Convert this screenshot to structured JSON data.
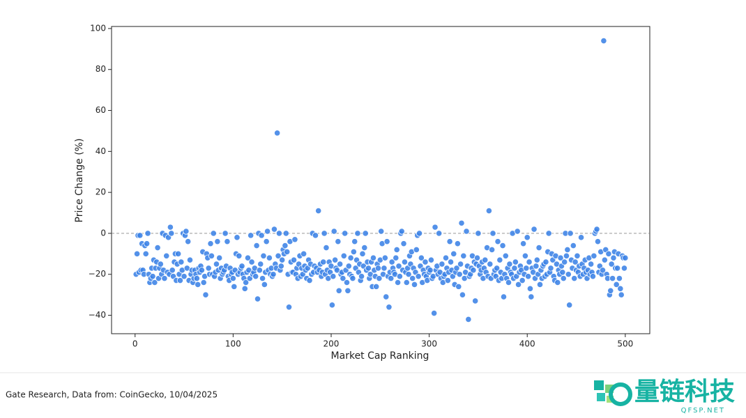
{
  "chart_data": {
    "type": "scatter",
    "x_label": "Market Cap Ranking",
    "y_label": "Price Change (%)",
    "color": "#3b82e6",
    "edge_color": "#ffffff",
    "grid": false,
    "reference_line": 0,
    "xlim": [
      -24,
      525
    ],
    "ylim": [
      -49,
      101
    ],
    "xticks": [
      0,
      100,
      200,
      300,
      400,
      500
    ],
    "yticks": [
      {
        "value": -40,
        "label": "−40"
      },
      {
        "value": -20,
        "label": "−20"
      },
      0,
      20,
      40,
      60,
      80,
      100
    ],
    "x": [
      1,
      2,
      3,
      4,
      5,
      6,
      7,
      8,
      9,
      10,
      11,
      12,
      13,
      14,
      15,
      16,
      17,
      18,
      19,
      20,
      21,
      22,
      23,
      24,
      25,
      26,
      27,
      28,
      29,
      30,
      31,
      32,
      33,
      34,
      35,
      36,
      37,
      38,
      39,
      40,
      41,
      42,
      43,
      44,
      45,
      46,
      47,
      48,
      49,
      50,
      51,
      52,
      53,
      54,
      55,
      56,
      57,
      58,
      59,
      60,
      61,
      62,
      63,
      64,
      65,
      66,
      67,
      68,
      69,
      70,
      71,
      72,
      73,
      74,
      75,
      76,
      77,
      78,
      79,
      80,
      81,
      82,
      83,
      84,
      85,
      86,
      87,
      88,
      89,
      90,
      91,
      92,
      93,
      94,
      95,
      96,
      97,
      98,
      99,
      100,
      101,
      102,
      103,
      104,
      105,
      106,
      107,
      108,
      109,
      110,
      111,
      112,
      113,
      114,
      115,
      116,
      117,
      118,
      119,
      120,
      121,
      122,
      123,
      124,
      125,
      126,
      127,
      128,
      129,
      130,
      131,
      132,
      133,
      134,
      135,
      136,
      137,
      138,
      139,
      140,
      141,
      142,
      143,
      144,
      145,
      146,
      147,
      148,
      149,
      150,
      151,
      152,
      153,
      154,
      155,
      156,
      157,
      158,
      159,
      160,
      161,
      162,
      163,
      164,
      165,
      166,
      167,
      168,
      169,
      170,
      171,
      172,
      173,
      174,
      175,
      176,
      177,
      178,
      179,
      180,
      181,
      182,
      183,
      184,
      185,
      186,
      187,
      188,
      189,
      190,
      191,
      192,
      193,
      194,
      195,
      196,
      197,
      198,
      199,
      200,
      201,
      202,
      203,
      204,
      205,
      206,
      207,
      208,
      209,
      210,
      211,
      212,
      213,
      214,
      215,
      216,
      217,
      218,
      219,
      220,
      221,
      222,
      223,
      224,
      225,
      226,
      227,
      228,
      229,
      230,
      231,
      232,
      233,
      234,
      235,
      236,
      237,
      238,
      239,
      240,
      241,
      242,
      243,
      244,
      245,
      246,
      247,
      248,
      249,
      250,
      251,
      252,
      253,
      254,
      255,
      256,
      257,
      258,
      259,
      260,
      261,
      262,
      263,
      264,
      265,
      266,
      267,
      268,
      269,
      270,
      271,
      272,
      273,
      274,
      275,
      276,
      277,
      278,
      279,
      280,
      281,
      282,
      283,
      284,
      285,
      286,
      287,
      288,
      289,
      290,
      291,
      292,
      293,
      294,
      295,
      296,
      297,
      298,
      299,
      300,
      301,
      302,
      303,
      304,
      305,
      306,
      307,
      308,
      309,
      310,
      311,
      312,
      313,
      314,
      315,
      316,
      317,
      318,
      319,
      320,
      321,
      322,
      323,
      324,
      325,
      326,
      327,
      328,
      329,
      330,
      331,
      332,
      333,
      334,
      335,
      336,
      337,
      338,
      339,
      340,
      341,
      342,
      343,
      344,
      345,
      346,
      347,
      348,
      349,
      350,
      351,
      352,
      353,
      354,
      355,
      356,
      357,
      358,
      359,
      360,
      361,
      362,
      363,
      364,
      365,
      366,
      367,
      368,
      369,
      370,
      371,
      372,
      373,
      374,
      375,
      376,
      377,
      378,
      379,
      380,
      381,
      382,
      383,
      384,
      385,
      386,
      387,
      388,
      389,
      390,
      391,
      392,
      393,
      394,
      395,
      396,
      397,
      398,
      399,
      400,
      401,
      402,
      403,
      404,
      405,
      406,
      407,
      408,
      409,
      410,
      411,
      412,
      413,
      414,
      415,
      416,
      417,
      418,
      419,
      420,
      421,
      422,
      423,
      424,
      425,
      426,
      427,
      428,
      429,
      430,
      431,
      432,
      433,
      434,
      435,
      436,
      437,
      438,
      439,
      440,
      441,
      442,
      443,
      444,
      445,
      446,
      447,
      448,
      449,
      450,
      451,
      452,
      453,
      454,
      455,
      456,
      457,
      458,
      459,
      460,
      461,
      462,
      463,
      464,
      465,
      466,
      467,
      468,
      469,
      470,
      471,
      472,
      473,
      474,
      475,
      476,
      477,
      478,
      479,
      480,
      481,
      482,
      483,
      484,
      485,
      486,
      487,
      488,
      489,
      490,
      491,
      492,
      493,
      494,
      495,
      496,
      497,
      498,
      499,
      500
    ],
    "values": [
      -20,
      -10,
      -1,
      -19,
      -1,
      -18,
      -5,
      -18,
      -20,
      -6,
      -10,
      -5,
      0,
      -20,
      -24,
      -22,
      -17,
      -21,
      -13,
      -24,
      -17,
      -14,
      -7,
      -22,
      -17,
      -15,
      -20,
      0,
      -18,
      -22,
      -1,
      -11,
      -19,
      -2,
      -20,
      3,
      0,
      -18,
      -21,
      -14,
      -10,
      -23,
      -15,
      -10,
      -20,
      -23,
      -14,
      -18,
      0,
      -21,
      -1,
      1,
      -17,
      -4,
      -23,
      -13,
      -20,
      -18,
      -24,
      -22,
      -18,
      -20,
      -22,
      -25,
      -17,
      -19,
      -16,
      -18,
      -9,
      -24,
      -21,
      -30,
      -10,
      -12,
      -17,
      -20,
      -5,
      -11,
      -20,
      0,
      -21,
      -19,
      -15,
      -4,
      -18,
      -12,
      -22,
      -17,
      -20,
      -19,
      -18,
      0,
      -16,
      -4,
      -21,
      -23,
      -17,
      -20,
      -19,
      -22,
      -26,
      -18,
      -10,
      -2,
      -20,
      -11,
      -19,
      -17,
      -16,
      -20,
      -22,
      -27,
      -24,
      -19,
      -12,
      -18,
      -22,
      -1,
      -14,
      -20,
      -19,
      -17,
      -21,
      -6,
      -32,
      0,
      -18,
      -15,
      -1,
      -22,
      -11,
      -25,
      -19,
      -4,
      1,
      -18,
      -12,
      -20,
      -17,
      -21,
      -20,
      2,
      -15,
      -17,
      49,
      -11,
      0,
      -18,
      -16,
      -13,
      -8,
      -10,
      -6,
      0,
      -9,
      -20,
      -36,
      -4,
      -14,
      -19,
      -19,
      -13,
      -3,
      -20,
      -17,
      -22,
      -15,
      -11,
      -21,
      -17,
      -20,
      -10,
      -16,
      -18,
      -22,
      -17,
      -13,
      -23,
      -15,
      -20,
      0,
      -19,
      -16,
      -1,
      -17,
      -19,
      11,
      -18,
      -15,
      -21,
      -19,
      -14,
      0,
      -20,
      -7,
      -18,
      -22,
      -14,
      -19,
      -16,
      -35,
      -21,
      1,
      -13,
      -17,
      -18,
      -4,
      -28,
      -15,
      -20,
      -19,
      -22,
      -11,
      0,
      -18,
      -24,
      -28,
      -16,
      -20,
      -12,
      -21,
      -22,
      -9,
      -4,
      -17,
      -13,
      0,
      -19,
      -15,
      -23,
      -21,
      -10,
      -16,
      -7,
      0,
      -18,
      -14,
      -17,
      -22,
      -20,
      -14,
      -26,
      -12,
      -18,
      -21,
      -26,
      -15,
      -17,
      -22,
      -13,
      1,
      -5,
      -20,
      -17,
      -12,
      -31,
      -4,
      -21,
      -36,
      -19,
      -22,
      -14,
      -17,
      -19,
      -20,
      -12,
      -8,
      -24,
      -16,
      -21,
      0,
      1,
      -18,
      -5,
      -14,
      -19,
      -24,
      -17,
      -20,
      -11,
      -15,
      -9,
      -22,
      -17,
      -25,
      -19,
      -8,
      -1,
      -21,
      0,
      -16,
      -12,
      -24,
      -18,
      -20,
      -14,
      -21,
      -23,
      -17,
      -19,
      -18,
      -13,
      -22,
      -21,
      -39,
      3,
      -18,
      -16,
      -20,
      0,
      -19,
      -22,
      -15,
      -24,
      -21,
      -20,
      -12,
      -17,
      -23,
      -19,
      -4,
      -14,
      -18,
      -21,
      -10,
      -25,
      -19,
      -17,
      -5,
      -26,
      -20,
      -15,
      5,
      -30,
      -11,
      -22,
      -19,
      1,
      -16,
      -42,
      -21,
      -20,
      -17,
      -11,
      -18,
      -14,
      -33,
      -15,
      -12,
      0,
      -16,
      -20,
      -18,
      -14,
      -22,
      -17,
      -13,
      -19,
      -7,
      -21,
      11,
      -15,
      -22,
      -8,
      0,
      -20,
      -18,
      -21,
      -17,
      -4,
      -23,
      -13,
      -19,
      -22,
      -6,
      -31,
      -20,
      -11,
      -22,
      -17,
      -24,
      -15,
      -19,
      -20,
      0,
      -22,
      -17,
      -14,
      -21,
      1,
      -25,
      -19,
      -16,
      -18,
      -23,
      -5,
      -20,
      -11,
      -17,
      -2,
      -21,
      -14,
      -27,
      -31,
      -17,
      -19,
      2,
      -22,
      -16,
      -13,
      -20,
      -7,
      -25,
      -18,
      -22,
      -16,
      -15,
      -21,
      -14,
      -20,
      -9,
      0,
      -19,
      -17,
      -10,
      -13,
      -21,
      -23,
      -11,
      -15,
      -24,
      -18,
      -20,
      -12,
      -16,
      -19,
      -22,
      -14,
      0,
      -11,
      -8,
      -20,
      -35,
      0,
      -13,
      -17,
      -6,
      -22,
      -14,
      -18,
      -11,
      -19,
      -16,
      -21,
      -2,
      -15,
      -20,
      -17,
      -13,
      -19,
      -22,
      -18,
      -12,
      -20,
      -15,
      -19,
      -21,
      -11,
      0,
      1,
      2,
      -4,
      -19,
      -16,
      -9,
      -20,
      -18,
      94,
      -13,
      -8,
      -20,
      -22,
      -10,
      -30,
      -28,
      -15,
      -22,
      -12,
      -9,
      -17,
      -25,
      -17,
      -10,
      -22,
      -27,
      -30,
      -11,
      -12,
      -17,
      -12
    ]
  },
  "footer": {
    "source": "Gate Research, Data from: CoinGecko, 10/04/2025"
  },
  "logo": {
    "text": "量链科技",
    "subtext": "QFSP.NET"
  }
}
